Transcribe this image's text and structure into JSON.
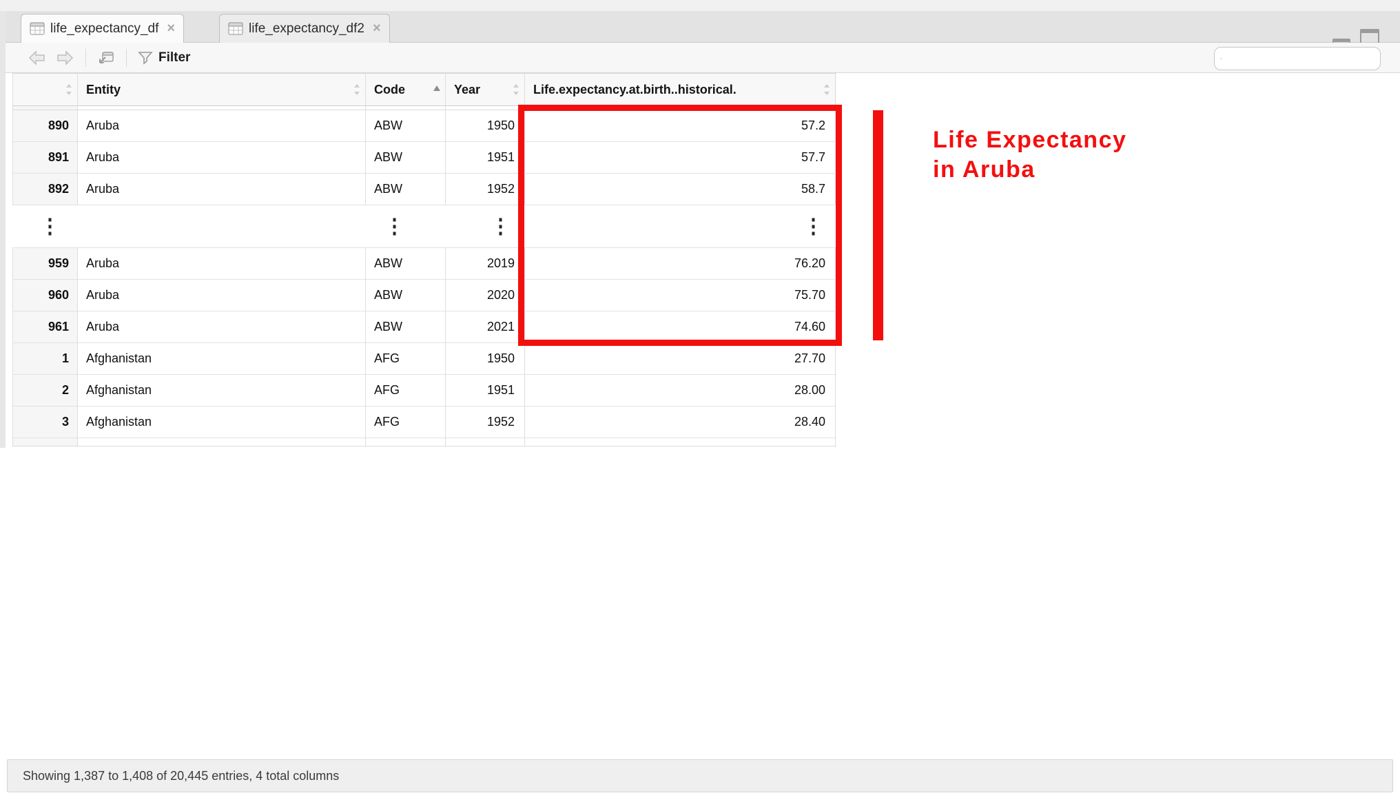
{
  "tabs": [
    {
      "label": "life_expectancy_df",
      "close": "×"
    },
    {
      "label": "life_expectancy_df2",
      "close": "×"
    }
  ],
  "toolbar": {
    "filter_label": "Filter"
  },
  "search": {
    "value": "",
    "placeholder": ""
  },
  "table": {
    "columns": [
      {
        "label": "",
        "sort": "both"
      },
      {
        "label": "Entity",
        "sort": "both"
      },
      {
        "label": "Code",
        "sort": "asc"
      },
      {
        "label": "Year",
        "sort": "both"
      },
      {
        "label": "Life.expectancy.at.birth..historical.",
        "sort": "both"
      }
    ],
    "rows": [
      {
        "type": "data",
        "num": "890",
        "entity": "Aruba",
        "code": "ABW",
        "year": "1950",
        "value": "57.2"
      },
      {
        "type": "data",
        "num": "891",
        "entity": "Aruba",
        "code": "ABW",
        "year": "1951",
        "value": "57.7"
      },
      {
        "type": "data",
        "num": "892",
        "entity": "Aruba",
        "code": "ABW",
        "year": "1952",
        "value": "58.7"
      },
      {
        "type": "ellipsis"
      },
      {
        "type": "data",
        "num": "959",
        "entity": "Aruba",
        "code": "ABW",
        "year": "2019",
        "value": "76.20"
      },
      {
        "type": "data",
        "num": "960",
        "entity": "Aruba",
        "code": "ABW",
        "year": "2020",
        "value": "75.70"
      },
      {
        "type": "data",
        "num": "961",
        "entity": "Aruba",
        "code": "ABW",
        "year": "2021",
        "value": "74.60"
      },
      {
        "type": "data",
        "num": "1",
        "entity": "Afghanistan",
        "code": "AFG",
        "year": "1950",
        "value": "27.70"
      },
      {
        "type": "data",
        "num": "2",
        "entity": "Afghanistan",
        "code": "AFG",
        "year": "1951",
        "value": "28.00"
      },
      {
        "type": "data",
        "num": "3",
        "entity": "Afghanistan",
        "code": "AFG",
        "year": "1952",
        "value": "28.40"
      }
    ]
  },
  "annotation": {
    "line1": "Life Expectancy",
    "line2": "in Aruba",
    "color": "#f40f0f"
  },
  "status": {
    "text": "Showing 1,387 to 1,408 of 20,445 entries, 4 total columns"
  }
}
